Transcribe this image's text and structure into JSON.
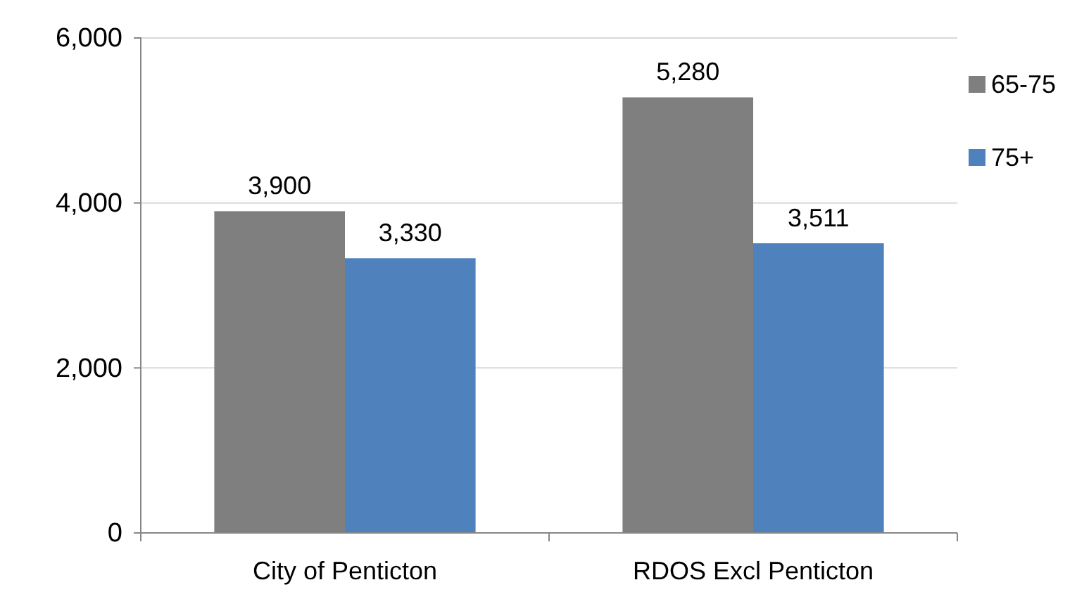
{
  "chart_data": {
    "type": "bar",
    "categories": [
      "City of Penticton",
      "RDOS Excl Penticton"
    ],
    "series": [
      {
        "name": "65-75",
        "color": "#7f7f7f",
        "values": [
          3900,
          5280
        ],
        "value_labels": [
          "3,900",
          "5,280"
        ]
      },
      {
        "name": "75+",
        "color": "#4f81bd",
        "values": [
          3330,
          3511
        ],
        "value_labels": [
          "3,330",
          "3,511"
        ]
      }
    ],
    "ylim": [
      0,
      6000
    ],
    "yticks": [
      0,
      {
        "value": 2000,
        "label": "2,000"
      },
      {
        "value": 4000,
        "label": "4,000"
      },
      {
        "value": 6000,
        "label": "6,000"
      }
    ],
    "grid": "y",
    "legend": "top right"
  }
}
